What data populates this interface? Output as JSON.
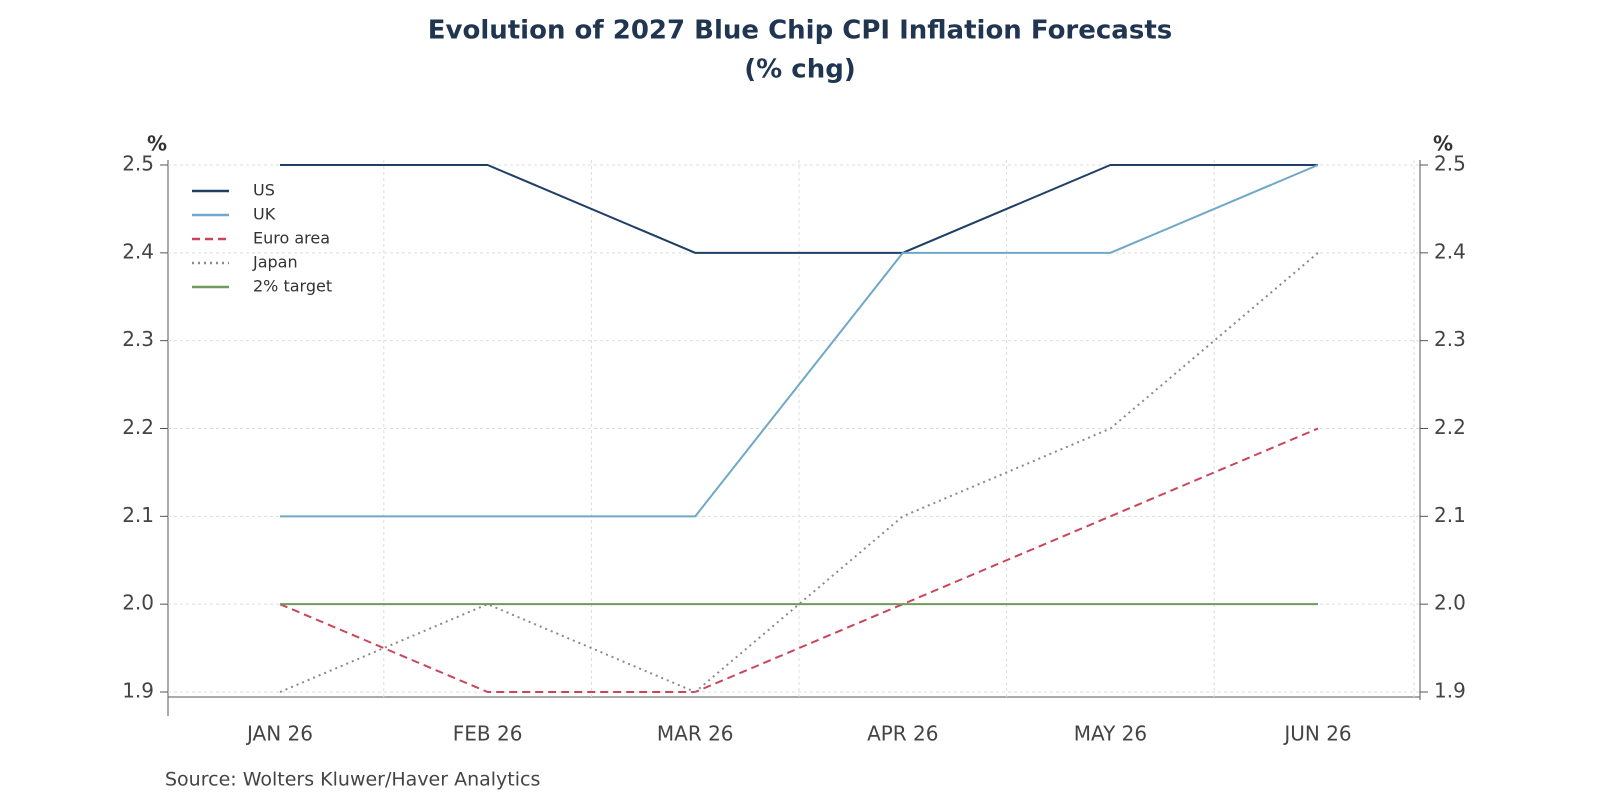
{
  "chart_data": {
    "type": "line",
    "title": "Evolution of 2027 Blue Chip CPI Inflation Forecasts",
    "subtitle": "(% chg)",
    "y_label": "%",
    "y2_label": "%",
    "source": "Source:  Wolters Kluwer/Haver Analytics",
    "categories": [
      "JAN 26",
      "FEB 26",
      "MAR 26",
      "APR 26",
      "MAY 26",
      "JUN 26"
    ],
    "series": [
      {
        "name": "US",
        "color": "#1f3f66",
        "dash": "solid",
        "values": [
          2.5,
          2.5,
          2.4,
          2.4,
          2.5,
          2.5
        ]
      },
      {
        "name": "UK",
        "color": "#6fa8c8",
        "dash": "solid",
        "values": [
          2.1,
          2.1,
          2.1,
          2.4,
          2.4,
          2.5
        ]
      },
      {
        "name": "Euro area",
        "color": "#c9465a",
        "dash": "dashed",
        "values": [
          2.0,
          1.9,
          1.9,
          2.0,
          2.1,
          2.2
        ]
      },
      {
        "name": "Japan",
        "color": "#8a8a8a",
        "dash": "dotted",
        "values": [
          1.9,
          2.0,
          1.9,
          2.1,
          2.2,
          2.4
        ]
      },
      {
        "name": "2% target",
        "color": "#6f9a5a",
        "dash": "solid",
        "values": [
          2.0,
          2.0,
          2.0,
          2.0,
          2.0,
          2.0
        ]
      }
    ],
    "ylim": [
      1.9,
      2.5
    ],
    "yticks": [
      1.9,
      {
        "value": 2,
        "label": "2.0"
      },
      2.1,
      2.2,
      2.3,
      2.4,
      2.5
    ],
    "y2lim": [
      1.9,
      2.5
    ],
    "y2ticks": [
      1.9,
      {
        "value": 2,
        "label": "2.0"
      },
      2.1,
      2.2,
      2.3,
      2.4,
      2.5
    ],
    "grid": true,
    "legend": "upper left"
  }
}
